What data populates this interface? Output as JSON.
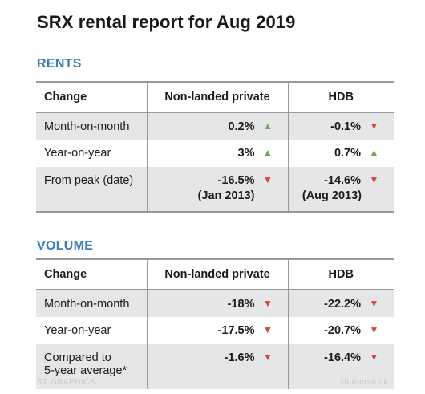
{
  "title": "SRX rental report for Aug 2019",
  "colors": {
    "heading_blue": "#3a7fb8",
    "up_green": "#6aaa50",
    "down_red": "#d7453a",
    "shade_grey": "#e4e6e8"
  },
  "rents": {
    "heading": "RENTS",
    "headers": {
      "change": "Change",
      "private": "Non-landed private",
      "hdb": "HDB"
    },
    "rows": [
      {
        "label": "Month-on-month",
        "private": "0.2%",
        "private_dir": "up",
        "hdb": "-0.1%",
        "hdb_dir": "down"
      },
      {
        "label": "Year-on-year",
        "private": "3%",
        "private_dir": "up",
        "hdb": "0.7%",
        "hdb_dir": "up"
      },
      {
        "label": "From peak (date)",
        "private": "-16.5%",
        "private_sub": "(Jan 2013)",
        "private_dir": "down",
        "hdb": "-14.6%",
        "hdb_sub": "(Aug 2013)",
        "hdb_dir": "down"
      }
    ]
  },
  "volume": {
    "heading": "VOLUME",
    "headers": {
      "change": "Change",
      "private": "Non-landed private",
      "hdb": "HDB"
    },
    "rows": [
      {
        "label": "Month-on-month",
        "private": "-18%",
        "private_dir": "down",
        "hdb": "-22.2%",
        "hdb_dir": "down"
      },
      {
        "label": "Year-on-year",
        "private": "-17.5%",
        "private_dir": "down",
        "hdb": "-20.7%",
        "hdb_dir": "down"
      },
      {
        "label": "Compared to",
        "label_line2": "5-year average*",
        "private": "-1.6%",
        "private_dir": "down",
        "hdb": "-16.4%",
        "hdb_dir": "down"
      }
    ]
  },
  "watermark": {
    "left": "ST GRAPHICS",
    "right": "shutterstock"
  }
}
